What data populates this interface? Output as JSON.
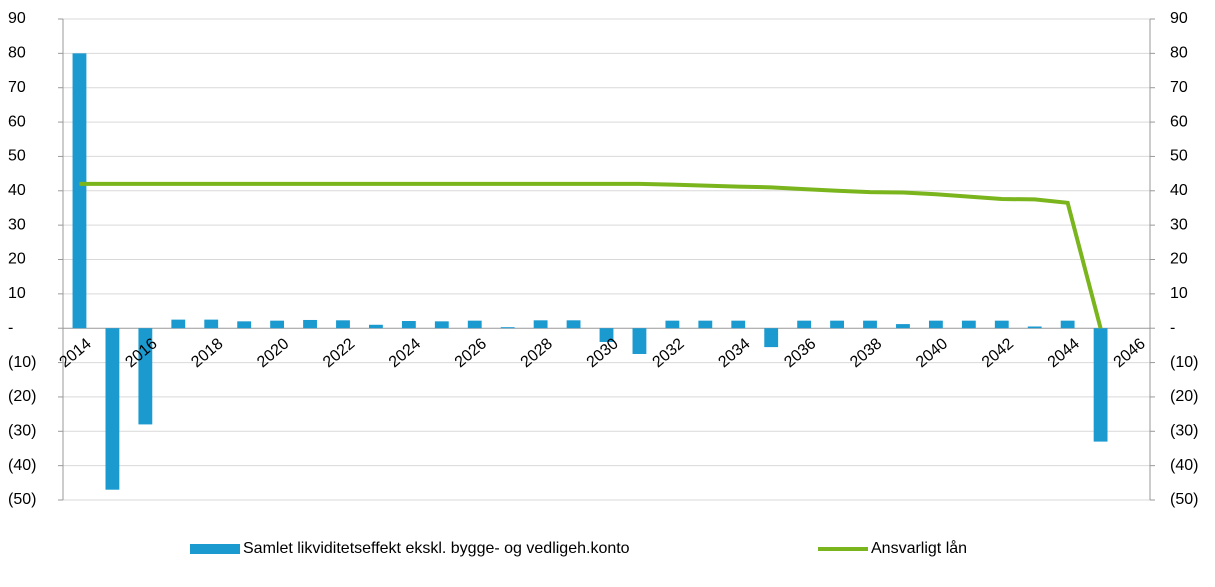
{
  "chart_data": {
    "type": "bar_line",
    "categories": [
      "2014",
      null,
      "2016",
      null,
      "2018",
      null,
      "2020",
      null,
      "2022",
      null,
      "2024",
      null,
      "2026",
      null,
      "2028",
      null,
      "2030",
      null,
      "2032",
      null,
      "2034",
      null,
      "2036",
      null,
      "2038",
      null,
      "2040",
      null,
      "2042",
      null,
      "2044",
      null,
      "2046"
    ],
    "series": [
      {
        "name": "Samlet likviditetseffekt ekskl. bygge- og vedligeh.konto",
        "type": "bar",
        "color": "#1b9ad0",
        "values": [
          80,
          -47,
          -28,
          2.5,
          2.5,
          2,
          2.2,
          2.4,
          2.3,
          1,
          2.1,
          2,
          2.2,
          0.3,
          2.3,
          2.3,
          -4,
          -7.5,
          2.2,
          2.2,
          2.2,
          -5.5,
          2.2,
          2.2,
          2.2,
          1.2,
          2.2,
          2.2,
          2.2,
          0.5,
          2.2,
          -33,
          null
        ]
      },
      {
        "name": "Ansvarligt lån",
        "type": "line",
        "color": "#7ab51d",
        "axis": "y2",
        "values": [
          42,
          42,
          42,
          42,
          42,
          42,
          42,
          42,
          42,
          42,
          42,
          42,
          42,
          42,
          42,
          42,
          42,
          42,
          41.8,
          41.5,
          41.2,
          41,
          40.5,
          40,
          39.6,
          39.5,
          39,
          38.3,
          37.6,
          37.5,
          36.5,
          0,
          null
        ]
      }
    ],
    "ylim": [
      -50,
      90
    ],
    "yticks": [
      {
        "value": -50,
        "label": "(50)"
      },
      {
        "value": -40,
        "label": "(40)"
      },
      {
        "value": -30,
        "label": "(30)"
      },
      {
        "value": -20,
        "label": "(20)"
      },
      {
        "value": -10,
        "label": "(10)"
      },
      {
        "value": 0,
        "label": "-"
      },
      10,
      20,
      30,
      40,
      50,
      60,
      70,
      80,
      90
    ],
    "y2lim": [
      -50,
      90
    ],
    "y2ticks": [
      {
        "value": -50,
        "label": "(50)"
      },
      {
        "value": -40,
        "label": "(40)"
      },
      {
        "value": -30,
        "label": "(30)"
      },
      {
        "value": -20,
        "label": "(20)"
      },
      {
        "value": -10,
        "label": "(10)"
      },
      {
        "value": 0,
        "label": "-"
      },
      10,
      20,
      30,
      40,
      50,
      60,
      70,
      80,
      90
    ],
    "grid": true,
    "legend": "bottom"
  }
}
